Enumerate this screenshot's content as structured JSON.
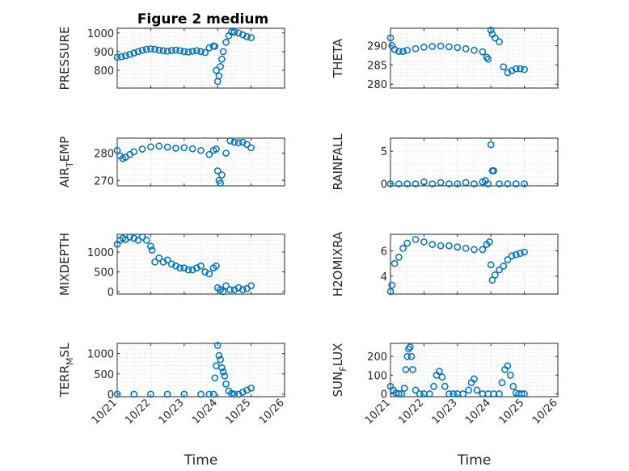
{
  "figure": {
    "title": "Figure 2 medium"
  },
  "chart_data": [
    {
      "type": "scatter",
      "title": "Figure 2 medium",
      "ylabel": "PRESSURE",
      "xlabel": "",
      "xlim": [
        "10/21",
        "10/26"
      ],
      "ylim": [
        705,
        1025
      ],
      "yticks": [
        800,
        900,
        1000
      ],
      "xticks": [],
      "grid": true,
      "color": "#0072bd",
      "x": [
        "10/21 00:00",
        "10/21 03:00",
        "10/21 06:00",
        "10/21 09:00",
        "10/21 12:00",
        "10/21 15:00",
        "10/21 18:00",
        "10/21 21:00",
        "10/22 00:00",
        "10/22 03:00",
        "10/22 06:00",
        "10/22 09:00",
        "10/22 12:00",
        "10/22 15:00",
        "10/22 18:00",
        "10/22 21:00",
        "10/23 00:00",
        "10/23 03:00",
        "10/23 06:00",
        "10/23 09:00",
        "10/23 12:00",
        "10/23 15:00",
        "10/23 18:00",
        "10/23 21:00",
        "10/23 22:00",
        "10/23 23:00",
        "10/24 00:00",
        "10/24 01:00",
        "10/24 02:00",
        "10/24 03:00",
        "10/24 04:00",
        "10/24 06:00",
        "10/24 08:00",
        "10/24 10:00",
        "10/24 12:00",
        "10/24 15:00",
        "10/24 18:00",
        "10/24 21:00",
        "10/25 00:00"
      ],
      "values": [
        870,
        873,
        878,
        885,
        893,
        900,
        907,
        912,
        915,
        912,
        908,
        905,
        903,
        906,
        908,
        905,
        900,
        898,
        902,
        905,
        900,
        895,
        920,
        930,
        928,
        800,
        740,
        770,
        820,
        860,
        900,
        950,
        985,
        1005,
        1005,
        1000,
        990,
        980,
        975
      ]
    },
    {
      "type": "scatter",
      "ylabel": "THETA",
      "xlabel": "",
      "xlim": [
        "10/21",
        "10/26"
      ],
      "ylim": [
        279,
        294.5
      ],
      "yticks": [
        280,
        285,
        290
      ],
      "xticks": [],
      "grid": true,
      "color": "#0072bd",
      "x": [
        "10/21 00:00",
        "10/21 01:00",
        "10/21 03:00",
        "10/21 06:00",
        "10/21 09:00",
        "10/21 12:00",
        "10/21 18:00",
        "10/22 00:00",
        "10/22 06:00",
        "10/22 12:00",
        "10/22 18:00",
        "10/23 00:00",
        "10/23 06:00",
        "10/23 12:00",
        "10/23 18:00",
        "10/23 21:00",
        "10/23 22:00",
        "10/24 00:00",
        "10/24 01:00",
        "10/24 03:00",
        "10/24 06:00",
        "10/24 09:00",
        "10/24 12:00",
        "10/24 15:00",
        "10/24 18:00",
        "10/24 21:00",
        "10/25 00:00"
      ],
      "values": [
        292,
        290,
        289,
        288.5,
        288.5,
        288.8,
        289.2,
        289.6,
        289.8,
        289.9,
        289.7,
        289.5,
        289.2,
        288.8,
        288.4,
        287,
        286.5,
        294,
        293,
        292,
        291,
        284.5,
        283,
        283.5,
        284,
        284,
        283.8
      ]
    },
    {
      "type": "scatter",
      "ylabel": "AIR",
      "ylabel_sub": "T",
      "ylabel_rest": "EMP",
      "xlabel": "",
      "xlim": [
        "10/21",
        "10/26"
      ],
      "ylim": [
        268,
        285.5
      ],
      "yticks": [
        270,
        280
      ],
      "xticks": [],
      "grid": true,
      "color": "#0072bd",
      "x": [
        "10/21 00:00",
        "10/21 02:00",
        "10/21 04:00",
        "10/21 06:00",
        "10/21 09:00",
        "10/21 12:00",
        "10/21 18:00",
        "10/22 00:00",
        "10/22 06:00",
        "10/22 12:00",
        "10/22 18:00",
        "10/23 00:00",
        "10/23 06:00",
        "10/23 12:00",
        "10/23 18:00",
        "10/23 21:00",
        "10/23 23:00",
        "10/24 00:00",
        "10/24 01:00",
        "10/24 02:00",
        "10/24 03:00",
        "10/24 06:00",
        "10/24 09:00",
        "10/24 12:00",
        "10/24 15:00",
        "10/24 18:00",
        "10/24 21:00",
        "10/25 00:00"
      ],
      "values": [
        281,
        279,
        278,
        278.5,
        279.5,
        280.5,
        281.5,
        282.3,
        282.6,
        282.2,
        281.8,
        282,
        281.6,
        281,
        279.5,
        281,
        281.5,
        273.5,
        270,
        269,
        272,
        280,
        284.5,
        284,
        283.8,
        284,
        283.2,
        282
      ]
    },
    {
      "type": "scatter",
      "ylabel": "RAINFALL",
      "xlabel": "",
      "xlim": [
        "10/21",
        "10/26"
      ],
      "ylim": [
        -0.3,
        7
      ],
      "yticks": [
        0,
        5
      ],
      "xticks": [],
      "grid": true,
      "color": "#0072bd",
      "x": [
        "10/21 00:00",
        "10/21 06:00",
        "10/21 12:00",
        "10/21 18:00",
        "10/22 00:00",
        "10/22 06:00",
        "10/22 12:00",
        "10/22 18:00",
        "10/23 00:00",
        "10/23 06:00",
        "10/23 12:00",
        "10/23 18:00",
        "10/23 20:00",
        "10/23 22:00",
        "10/24 00:00",
        "10/24 01:00",
        "10/24 02:00",
        "10/24 06:00",
        "10/24 12:00",
        "10/24 18:00",
        "10/25 00:00"
      ],
      "values": [
        0,
        0,
        0,
        0,
        0.3,
        0,
        0.2,
        0,
        0,
        0.2,
        0,
        0.3,
        0.5,
        0,
        6,
        2,
        2,
        0,
        0,
        0,
        0
      ]
    },
    {
      "type": "scatter",
      "ylabel": "MIXDEPTH",
      "xlabel": "",
      "xlim": [
        "10/21",
        "10/26"
      ],
      "ylim": [
        -60,
        1450
      ],
      "yticks": [
        0,
        500,
        1000
      ],
      "xticks": [],
      "grid": true,
      "color": "#0072bd",
      "x": [
        "10/21 00:00",
        "10/21 02:00",
        "10/21 04:00",
        "10/21 06:00",
        "10/21 09:00",
        "10/21 12:00",
        "10/21 15:00",
        "10/21 18:00",
        "10/21 21:00",
        "10/22 00:00",
        "10/22 01:00",
        "10/22 03:00",
        "10/22 06:00",
        "10/22 09:00",
        "10/22 12:00",
        "10/22 15:00",
        "10/22 18:00",
        "10/22 21:00",
        "10/23 00:00",
        "10/23 03:00",
        "10/23 06:00",
        "10/23 09:00",
        "10/23 12:00",
        "10/23 15:00",
        "10/23 18:00",
        "10/23 21:00",
        "10/23 23:00",
        "10/24 00:00",
        "10/24 02:00",
        "10/24 04:00",
        "10/24 06:00",
        "10/24 09:00",
        "10/24 12:00",
        "10/24 15:00",
        "10/24 18:00",
        "10/24 21:00",
        "10/25 00:00"
      ],
      "values": [
        1200,
        1300,
        1350,
        1320,
        1380,
        1350,
        1300,
        1380,
        1300,
        1150,
        1050,
        750,
        850,
        750,
        800,
        700,
        650,
        600,
        600,
        550,
        550,
        600,
        650,
        500,
        450,
        600,
        650,
        100,
        50,
        0,
        150,
        50,
        50,
        100,
        50,
        80,
        150
      ]
    },
    {
      "type": "scatter",
      "ylabel": "H2OMIXRA",
      "xlabel": "",
      "xlim": [
        "10/21",
        "10/26"
      ],
      "ylim": [
        2.6,
        7.3
      ],
      "yticks": [
        4,
        6
      ],
      "xticks": [],
      "grid": true,
      "color": "#0072bd",
      "x": [
        "10/21 00:00",
        "10/21 01:00",
        "10/21 03:00",
        "10/21 06:00",
        "10/21 09:00",
        "10/21 12:00",
        "10/21 18:00",
        "10/22 00:00",
        "10/22 06:00",
        "10/22 12:00",
        "10/22 18:00",
        "10/23 00:00",
        "10/23 06:00",
        "10/23 12:00",
        "10/23 18:00",
        "10/23 21:00",
        "10/23 23:00",
        "10/24 00:00",
        "10/24 01:00",
        "10/24 03:00",
        "10/24 06:00",
        "10/24 09:00",
        "10/24 12:00",
        "10/24 15:00",
        "10/24 18:00",
        "10/24 21:00",
        "10/25 00:00"
      ],
      "values": [
        2.8,
        3.3,
        5,
        5.5,
        6.2,
        6.6,
        6.9,
        6.7,
        6.5,
        6.4,
        6.4,
        6.3,
        6.2,
        6.1,
        6.1,
        6.5,
        6.7,
        4.9,
        3.7,
        4.1,
        4.5,
        4.8,
        5.3,
        5.6,
        5.7,
        5.8,
        5.9
      ]
    },
    {
      "type": "scatter",
      "ylabel": "TERR",
      "ylabel_sub": "M",
      "ylabel_rest": "SL",
      "xlabel": "Time",
      "xlim": [
        "10/21",
        "10/26"
      ],
      "ylim": [
        -60,
        1250
      ],
      "yticks": [
        0,
        500,
        1000
      ],
      "xticks": [
        "10/21",
        "10/22",
        "10/23",
        "10/24",
        "10/25",
        "10/26"
      ],
      "grid": true,
      "color": "#0072bd",
      "x": [
        "10/21 00:00",
        "10/21 12:00",
        "10/22 00:00",
        "10/22 12:00",
        "10/23 00:00",
        "10/23 12:00",
        "10/23 18:00",
        "10/23 21:00",
        "10/23 22:00",
        "10/23 23:00",
        "10/24 00:00",
        "10/24 01:00",
        "10/24 02:00",
        "10/24 03:00",
        "10/24 04:00",
        "10/24 05:00",
        "10/24 06:00",
        "10/24 08:00",
        "10/24 10:00",
        "10/24 12:00",
        "10/24 15:00",
        "10/24 18:00",
        "10/24 21:00",
        "10/25 00:00"
      ],
      "values": [
        0,
        0,
        0,
        0,
        0,
        0,
        0,
        0,
        400,
        700,
        1200,
        950,
        850,
        650,
        550,
        450,
        250,
        80,
        20,
        0,
        0,
        50,
        100,
        150
      ]
    },
    {
      "type": "scatter",
      "ylabel": "SUN",
      "ylabel_sub": "F",
      "ylabel_rest": "LUX",
      "xlabel": "Time",
      "xlim": [
        "10/21",
        "10/26"
      ],
      "ylim": [
        -15,
        270
      ],
      "yticks": [
        0,
        100,
        200
      ],
      "xticks": [
        "10/21",
        "10/22",
        "10/23",
        "10/24",
        "10/25",
        "10/26"
      ],
      "grid": true,
      "color": "#0072bd",
      "x": [
        "10/21 00:00",
        "10/21 02:00",
        "10/21 04:00",
        "10/21 06:00",
        "10/21 08:00",
        "10/21 10:00",
        "10/21 11:00",
        "10/21 12:00",
        "10/21 13:00",
        "10/21 14:00",
        "10/21 15:00",
        "10/21 16:00",
        "10/21 18:00",
        "10/21 21:00",
        "10/22 00:00",
        "10/22 04:00",
        "10/22 07:00",
        "10/22 09:00",
        "10/22 11:00",
        "10/22 13:00",
        "10/22 15:00",
        "10/22 18:00",
        "10/22 21:00",
        "10/23 00:00",
        "10/23 04:00",
        "10/23 08:00",
        "10/23 10:00",
        "10/23 12:00",
        "10/23 14:00",
        "10/23 18:00",
        "10/23 22:00",
        "10/24 02:00",
        "10/24 06:00",
        "10/24 08:00",
        "10/24 10:00",
        "10/24 12:00",
        "10/24 14:00",
        "10/24 16:00",
        "10/24 18:00",
        "10/24 20:00",
        "10/24 22:00",
        "10/25 00:00"
      ],
      "values": [
        40,
        20,
        5,
        0,
        0,
        30,
        130,
        200,
        240,
        250,
        200,
        130,
        20,
        0,
        0,
        0,
        40,
        100,
        120,
        90,
        40,
        0,
        0,
        0,
        0,
        20,
        60,
        80,
        20,
        0,
        0,
        0,
        0,
        60,
        130,
        150,
        100,
        40,
        5,
        0,
        0,
        0
      ]
    }
  ]
}
